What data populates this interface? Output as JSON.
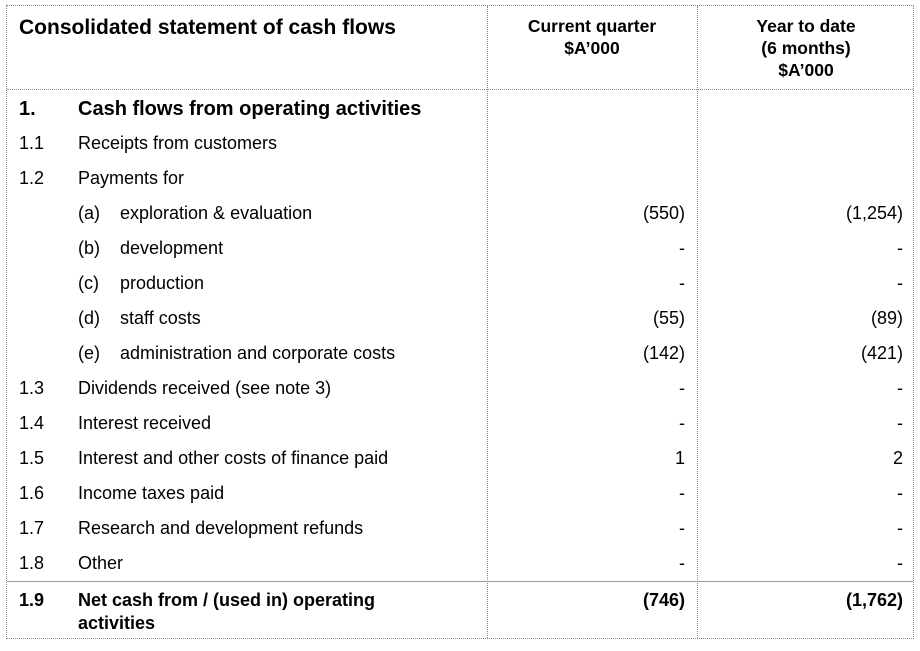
{
  "header": {
    "title": "Consolidated statement of cash flows",
    "col1": [
      "Current quarter",
      "$A’000"
    ],
    "col2": [
      "Year to date",
      "(6 months)",
      "$A’000"
    ]
  },
  "section": {
    "num": "1.",
    "label": "Cash flows from operating activities"
  },
  "rows": [
    {
      "num": "1.1",
      "label": "Receipts from customers",
      "q": "",
      "ytd": ""
    },
    {
      "num": "1.2",
      "label": "Payments for",
      "q": "",
      "ytd": ""
    },
    {
      "sub": "(a)",
      "label": "exploration & evaluation",
      "q": "(550)",
      "ytd": "(1,254)"
    },
    {
      "sub": "(b)",
      "label": "development",
      "q": "-",
      "ytd": "-"
    },
    {
      "sub": "(c)",
      "label": "production",
      "q": "-",
      "ytd": "-"
    },
    {
      "sub": "(d)",
      "label": "staff costs",
      "q": "(55)",
      "ytd": "(89)"
    },
    {
      "sub": "(e)",
      "label": "administration and corporate costs",
      "q": "(142)",
      "ytd": "(421)"
    },
    {
      "num": "1.3",
      "label": "Dividends received (see note 3)",
      "q": "-",
      "ytd": "-"
    },
    {
      "num": "1.4",
      "label": "Interest received",
      "q": "-",
      "ytd": "-"
    },
    {
      "num": "1.5",
      "label": "Interest and other costs of finance paid",
      "q": "1",
      "ytd": "2"
    },
    {
      "num": "1.6",
      "label": "Income taxes paid",
      "q": "-",
      "ytd": "-"
    },
    {
      "num": "1.7",
      "label": "Research and development refunds",
      "q": "-",
      "ytd": "-"
    },
    {
      "num": "1.8",
      "label": "Other",
      "q": "-",
      "ytd": "-"
    }
  ],
  "total": {
    "num": "1.9",
    "label": "Net cash from / (used in) operating activities",
    "q": "(746)",
    "ytd": "(1,762)"
  }
}
